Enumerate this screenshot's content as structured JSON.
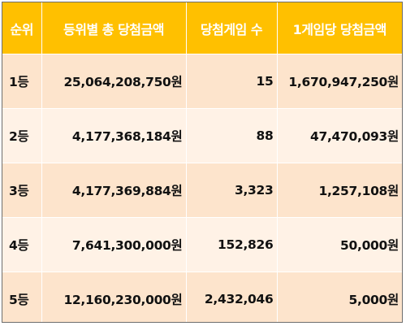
{
  "table": {
    "headers": [
      "순위",
      "등위별 총 당첨금액",
      "당첨게임 수",
      "1게임당 당첨금액"
    ],
    "rows": [
      {
        "rank": "1등",
        "total": "25,064,208,750원",
        "games": "15",
        "per_game": "1,670,947,250원"
      },
      {
        "rank": "2등",
        "total": "4,177,368,184원",
        "games": "88",
        "per_game": "47,470,093원"
      },
      {
        "rank": "3등",
        "total": "4,177,369,884원",
        "games": "3,323",
        "per_game": "1,257,108원"
      },
      {
        "rank": "4등",
        "total": "7,641,300,000원",
        "games": "152,826",
        "per_game": "50,000원"
      },
      {
        "rank": "5등",
        "total": "12,160,230,000원",
        "games": "2,432,046",
        "per_game": "5,000원"
      }
    ]
  },
  "colors": {
    "header_bg": "#ffc000",
    "header_text": "#ffffff",
    "row_odd_bg": "#fde4cc",
    "row_even_bg": "#fff2e6",
    "border": "#6e6e6e"
  }
}
